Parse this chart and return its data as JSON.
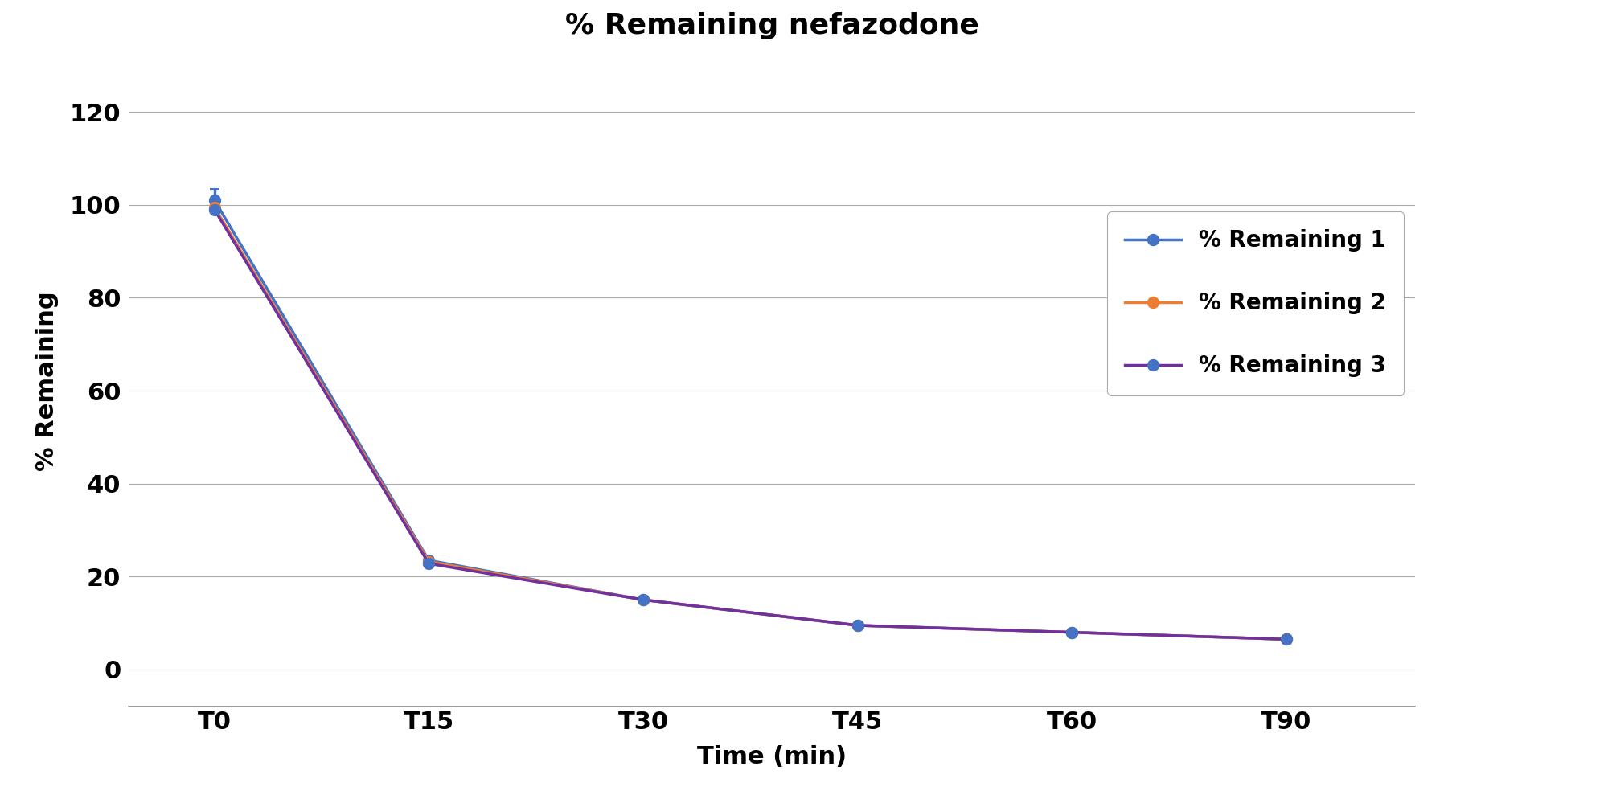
{
  "title": "% Remaining nefazodone",
  "xlabel": "Time (min)",
  "ylabel": "% Remaining",
  "x_labels": [
    "T0",
    "T15",
    "T30",
    "T45",
    "T60",
    "T90"
  ],
  "x_positions": [
    0,
    1,
    2,
    3,
    4,
    5
  ],
  "series": [
    {
      "label": "% Remaining 1",
      "line_color": "#4472C4",
      "marker_color": "#4472C4",
      "values": [
        101.0,
        23.5,
        15.0,
        9.5,
        8.0,
        6.5
      ],
      "errors": [
        2.5,
        0.0,
        0.0,
        0.0,
        0.0,
        0.0
      ]
    },
    {
      "label": "% Remaining 2",
      "line_color": "#ED7D31",
      "marker_color": "#ED7D31",
      "values": [
        99.5,
        23.2,
        15.0,
        9.5,
        8.0,
        6.5
      ],
      "errors": [
        0.0,
        0.0,
        0.0,
        0.0,
        0.0,
        0.0
      ]
    },
    {
      "label": "% Remaining 3",
      "line_color": "#7030A0",
      "marker_color": "#4472C4",
      "values": [
        99.0,
        22.8,
        15.0,
        9.5,
        8.0,
        6.5
      ],
      "errors": [
        0.0,
        0.0,
        0.0,
        0.0,
        0.0,
        0.0
      ]
    }
  ],
  "ylim": [
    -8,
    132
  ],
  "yticks": [
    0,
    20,
    40,
    60,
    80,
    100,
    120
  ],
  "xlim": [
    -0.4,
    5.6
  ],
  "background_color": "#FFFFFF",
  "grid_color": "#AAAAAA",
  "title_fontsize": 26,
  "axis_label_fontsize": 22,
  "tick_fontsize": 22,
  "legend_fontsize": 20,
  "marker": "o",
  "marker_size": 10,
  "line_width": 2.5
}
